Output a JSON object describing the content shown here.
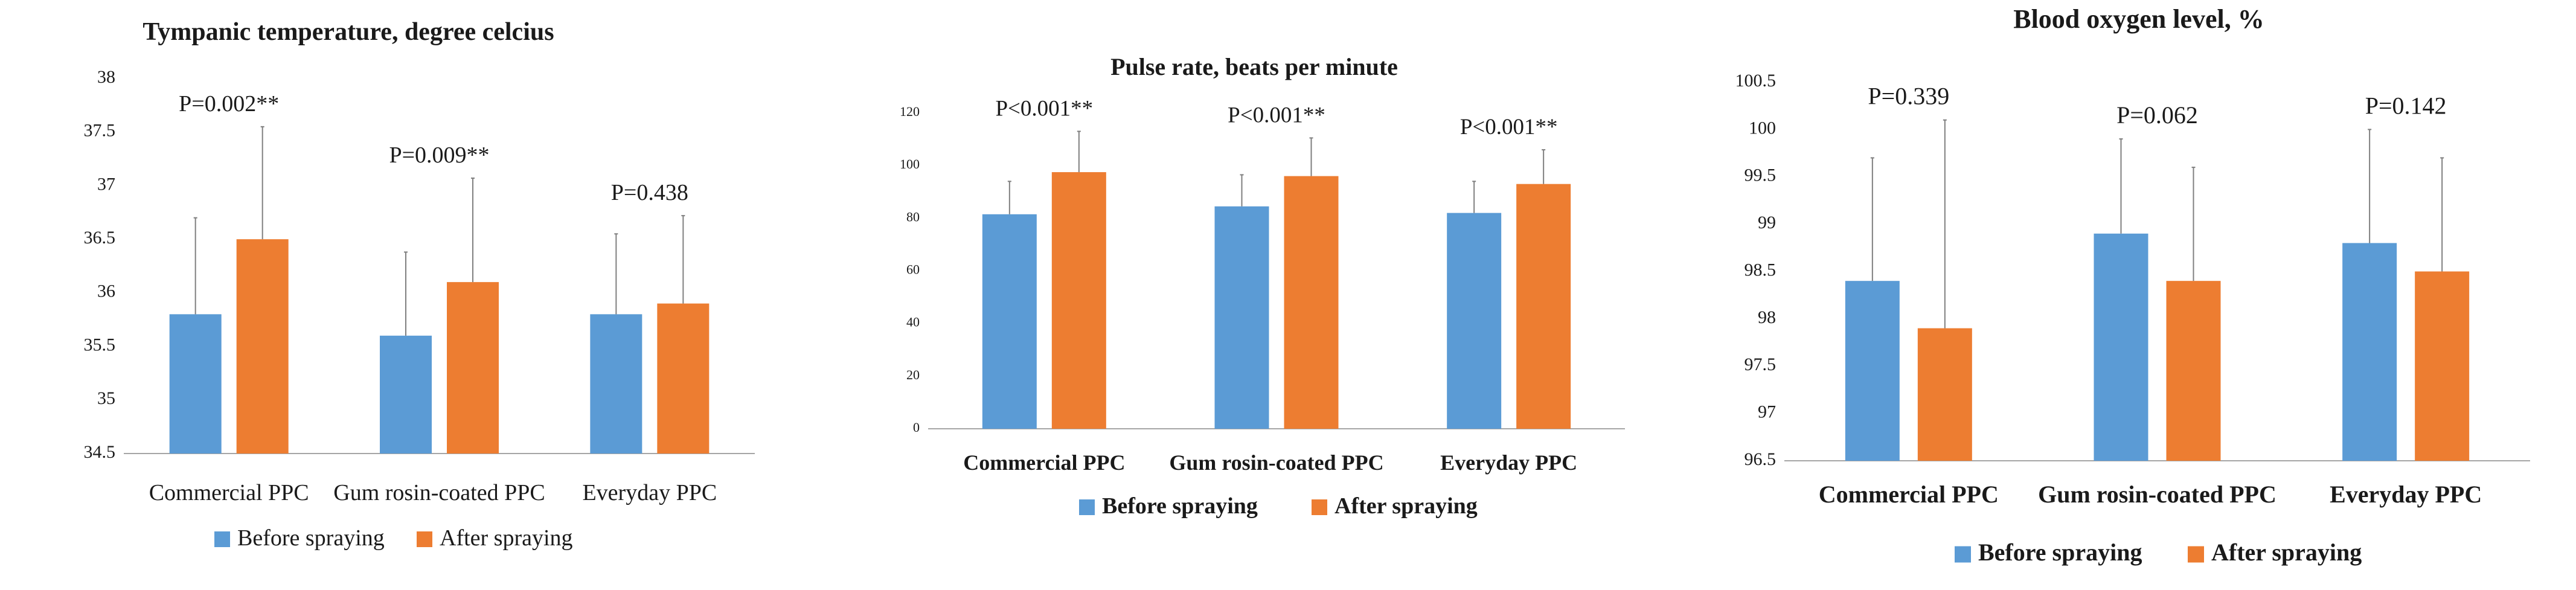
{
  "colors": {
    "before": "#5B9BD5",
    "after": "#ED7D31",
    "axis": "#a6a6a6",
    "text": "#1a1a1a",
    "error": "#7f7f7f"
  },
  "chart_data": [
    {
      "type": "bar",
      "title": "Tympanic temperature, degree celcius",
      "categories": [
        "Commercial PPC",
        "Gum rosin-coated PPC",
        "Everyday PPC"
      ],
      "series": [
        {
          "name": "Before spraying",
          "values": [
            35.8,
            35.6,
            35.8
          ],
          "error": [
            0.9,
            0.78,
            0.75
          ]
        },
        {
          "name": "After spraying",
          "values": [
            36.5,
            36.1,
            35.9
          ],
          "error": [
            1.05,
            0.97,
            0.82
          ]
        }
      ],
      "annotations": [
        "P=0.002**",
        "P=0.009**",
        "P=0.438"
      ],
      "ylim": [
        34.5,
        38
      ],
      "yticks": [
        "34.5",
        "35",
        "35.5",
        "36",
        "36.5",
        "37",
        "37.5",
        "38"
      ],
      "legend": "bottom",
      "grid": false
    },
    {
      "type": "bar",
      "title": "Pulse rate, beats per minute",
      "categories": [
        "Commercial PPC",
        "Gum rosin-coated PPC",
        "Everyday PPC"
      ],
      "series": [
        {
          "name": "Before spraying",
          "values": [
            81.5,
            84.5,
            82
          ],
          "error": [
            12.5,
            12,
            12
          ]
        },
        {
          "name": "After spraying",
          "values": [
            97.5,
            96,
            93
          ],
          "error": [
            15.5,
            14.5,
            13
          ]
        }
      ],
      "annotations": [
        "P<0.001**",
        "P<0.001**",
        "P<0.001**"
      ],
      "ylim": [
        0,
        120
      ],
      "yticks": [
        "0",
        "20",
        "40",
        "60",
        "80",
        "100",
        "120"
      ],
      "legend": "bottom",
      "grid": false
    },
    {
      "type": "bar",
      "title": "Blood oxygen level, %",
      "categories": [
        "Commercial PPC",
        "Gum rosin-coated PPC",
        "Everyday PPC"
      ],
      "series": [
        {
          "name": "Before spraying",
          "values": [
            98.4,
            98.9,
            98.8
          ],
          "error": [
            1.3,
            1.0,
            1.2
          ]
        },
        {
          "name": "After spraying",
          "values": [
            97.9,
            98.4,
            98.5
          ],
          "error": [
            2.2,
            1.2,
            1.2
          ]
        }
      ],
      "annotations": [
        "P=0.339",
        "P=0.062",
        "P=0.142"
      ],
      "ylim": [
        96.5,
        100.5
      ],
      "yticks": [
        "96.5",
        "97",
        "97.5",
        "98",
        "98.5",
        "99",
        "99.5",
        "100",
        "100.5"
      ],
      "legend": "bottom",
      "grid": false
    }
  ]
}
